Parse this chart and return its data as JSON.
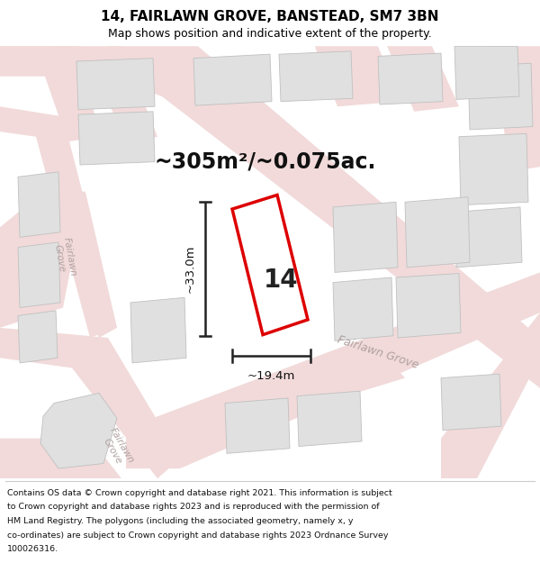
{
  "title": "14, FAIRLAWN GROVE, BANSTEAD, SM7 3BN",
  "subtitle": "Map shows position and indicative extent of the property.",
  "footer_lines": [
    "Contains OS data © Crown copyright and database right 2021. This information is subject",
    "to Crown copyright and database rights 2023 and is reproduced with the permission of",
    "HM Land Registry. The polygons (including the associated geometry, namely x, y",
    "co-ordinates) are subject to Crown copyright and database rights 2023 Ordnance Survey",
    "100026316."
  ],
  "area_label": "~305m²/~0.075ac.",
  "dim_height_label": "~33.0m",
  "dim_width_label": "~19.4m",
  "plot_number": "14",
  "bg_color": "#ffffff",
  "map_bg": "#f9f5f5",
  "road_color": "#f2dada",
  "building_color": "#e0e0e0",
  "building_edge": "#c0c0c0",
  "plot_outline_color": "#dd0000",
  "dim_line_color": "#222222",
  "road_label_color": "#b0a0a0",
  "title_fontsize": 11,
  "subtitle_fontsize": 9,
  "footer_fontsize": 6.8,
  "area_fontsize": 17,
  "number_fontsize": 20,
  "dim_fontsize": 9.5
}
